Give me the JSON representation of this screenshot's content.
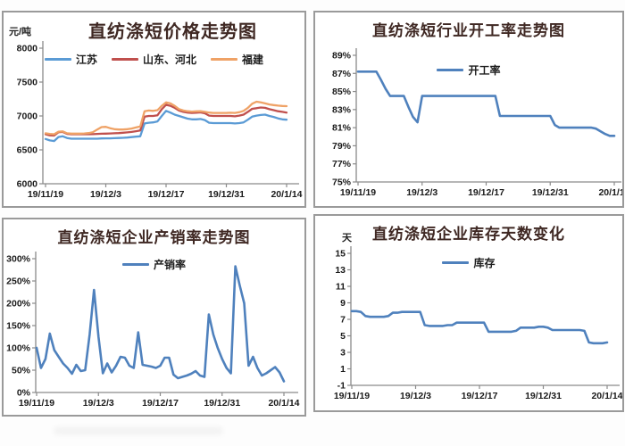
{
  "x_axis": {
    "tick_labels": [
      "19/11/19",
      "19/12/3",
      "19/12/17",
      "19/12/31",
      "20/1/14"
    ],
    "frequency": "daily",
    "n_points": 57,
    "start": "19/11/19",
    "end": "20/1/14"
  },
  "chart_data": [
    {
      "type": "line",
      "title": "直纺涤短价格走势图",
      "unit": "元/吨",
      "y_min": 6000,
      "y_max": 8000,
      "y_ticks": {
        "values": [
          8000,
          7500,
          7000,
          6500,
          6000
        ],
        "labels": [
          "8000",
          "7500",
          "7000",
          "6500",
          "6000"
        ]
      },
      "x_tick_labels": [
        "19/11/19",
        "19/12/3",
        "19/12/17",
        "19/12/31",
        "20/1/14"
      ],
      "legend_position": "top-center",
      "grid": false,
      "series": [
        {
          "name": "江苏",
          "color": "#5b9bd5",
          "values": [
            6660,
            6640,
            6630,
            6690,
            6700,
            6675,
            6665,
            6665,
            6665,
            6665,
            6665,
            6665,
            6665,
            6668,
            6670,
            6670,
            6672,
            6675,
            6678,
            6682,
            6688,
            6695,
            6700,
            6890,
            6900,
            6905,
            6920,
            7000,
            7075,
            7050,
            7020,
            7000,
            6980,
            6960,
            6950,
            6950,
            6955,
            6940,
            6900,
            6895,
            6895,
            6895,
            6895,
            6895,
            6890,
            6895,
            6905,
            6945,
            6990,
            7005,
            7015,
            7020,
            7000,
            6985,
            6965,
            6950,
            6945
          ]
        },
        {
          "name": "山东、河北",
          "color": "#c0504d",
          "values": [
            6730,
            6715,
            6710,
            6760,
            6765,
            6735,
            6730,
            6730,
            6730,
            6730,
            6730,
            6732,
            6735,
            6738,
            6740,
            6742,
            6745,
            6748,
            6752,
            6758,
            6765,
            6775,
            6785,
            6990,
            7000,
            7000,
            7010,
            7100,
            7165,
            7150,
            7120,
            7080,
            7060,
            7050,
            7045,
            7048,
            7052,
            7040,
            7005,
            7000,
            7000,
            7000,
            7000,
            7000,
            6995,
            7005,
            7020,
            7060,
            7105,
            7115,
            7125,
            7120,
            7100,
            7085,
            7070,
            7060,
            7050
          ]
        },
        {
          "name": "福建",
          "color": "#efa266",
          "values": [
            6745,
            6735,
            6730,
            6768,
            6772,
            6745,
            6740,
            6740,
            6740,
            6742,
            6748,
            6760,
            6800,
            6835,
            6840,
            6820,
            6805,
            6800,
            6800,
            6805,
            6815,
            6830,
            6845,
            7070,
            7080,
            7075,
            7085,
            7150,
            7200,
            7185,
            7150,
            7100,
            7080,
            7070,
            7065,
            7068,
            7070,
            7060,
            7050,
            7045,
            7045,
            7045,
            7045,
            7048,
            7045,
            7055,
            7075,
            7120,
            7180,
            7210,
            7200,
            7185,
            7170,
            7160,
            7152,
            7148,
            7145
          ]
        }
      ]
    },
    {
      "type": "line",
      "title": "直纺涤短行业开工率走势图",
      "y_min": 75,
      "y_max": 89,
      "y_ticks": {
        "values": [
          89,
          87,
          85,
          83,
          81,
          79,
          77,
          75
        ],
        "labels": [
          "89%",
          "87%",
          "85%",
          "83%",
          "81%",
          "79%",
          "77%",
          "75%"
        ]
      },
      "x_tick_labels": [
        "19/11/19",
        "19/12/3",
        "19/12/17",
        "19/12/31",
        "20/1/14"
      ],
      "legend_position": "top-center",
      "grid": false,
      "series": [
        {
          "name": "开工率",
          "color": "#4f81bd",
          "values": [
            87.2,
            87.2,
            87.2,
            87.2,
            87.2,
            86.3,
            85.3,
            84.5,
            84.5,
            84.5,
            84.5,
            83.3,
            82.2,
            81.6,
            84.5,
            84.5,
            84.5,
            84.5,
            84.5,
            84.5,
            84.5,
            84.5,
            84.5,
            84.5,
            84.5,
            84.5,
            84.5,
            84.5,
            84.5,
            84.5,
            84.5,
            82.3,
            82.3,
            82.3,
            82.3,
            82.3,
            82.3,
            82.3,
            82.3,
            82.3,
            82.3,
            82.3,
            82.3,
            81.3,
            81,
            81,
            81,
            81,
            81,
            81,
            81,
            81,
            80.9,
            80.6,
            80.3,
            80.1,
            80.1
          ]
        }
      ]
    },
    {
      "type": "line",
      "title": "直纺涤短企业产销率走势图",
      "y_min": 0,
      "y_max": 300,
      "y_ticks": {
        "values": [
          300,
          250,
          200,
          150,
          100,
          50,
          0
        ],
        "labels": [
          "300%",
          "250%",
          "200%",
          "150%",
          "100%",
          "50%",
          "0%"
        ]
      },
      "x_tick_labels": [
        "19/11/19",
        "19/12/3",
        "19/12/17",
        "19/12/31",
        "20/1/14"
      ],
      "legend_position": "top-center",
      "grid": false,
      "series": [
        {
          "name": "产销率",
          "color": "#4f81bd",
          "values": [
            100,
            55,
            75,
            132,
            95,
            80,
            65,
            55,
            42,
            62,
            48,
            50,
            130,
            230,
            125,
            43,
            65,
            45,
            60,
            80,
            78,
            60,
            55,
            135,
            62,
            60,
            58,
            55,
            60,
            78,
            78,
            40,
            32,
            35,
            38,
            42,
            48,
            38,
            35,
            175,
            130,
            100,
            75,
            55,
            43,
            283,
            240,
            200,
            60,
            80,
            55,
            38,
            43,
            50,
            57,
            45,
            25
          ]
        }
      ]
    },
    {
      "type": "line",
      "title": "直纺涤短企业库存天数变化",
      "unit": "天",
      "y_min": -1,
      "y_max": 15,
      "y_ticks": {
        "values": [
          15,
          13,
          11,
          9,
          7,
          5,
          3,
          1,
          -1
        ],
        "labels": [
          "15",
          "13",
          "11",
          "9",
          "7",
          "5",
          "3",
          "1",
          "-1"
        ]
      },
      "x_tick_labels": [
        "19/11/19",
        "19/12/3",
        "19/12/17",
        "19/12/31",
        "20/1/14"
      ],
      "legend_position": "top-center",
      "grid": false,
      "series": [
        {
          "name": "库存",
          "color": "#4f81bd",
          "values": [
            8,
            8,
            7.9,
            7.4,
            7.3,
            7.3,
            7.3,
            7.3,
            7.4,
            7.8,
            7.8,
            7.9,
            7.9,
            7.9,
            7.9,
            7.9,
            6.3,
            6.2,
            6.2,
            6.2,
            6.2,
            6.3,
            6.3,
            6.6,
            6.6,
            6.6,
            6.6,
            6.6,
            6.6,
            6.6,
            5.5,
            5.5,
            5.5,
            5.5,
            5.5,
            5.5,
            5.6,
            6,
            6,
            6,
            6,
            6.1,
            6.1,
            6,
            5.7,
            5.7,
            5.7,
            5.7,
            5.7,
            5.7,
            5.7,
            5.6,
            4.2,
            4.1,
            4.1,
            4.1,
            4.2
          ]
        }
      ]
    }
  ],
  "style": {
    "axis_color": "#8a8a8a",
    "tick_text_color": "#1a1a1a",
    "title_color": "#3f2823",
    "panel_border_color": "#9a9a9a",
    "background": "#ffffff"
  }
}
